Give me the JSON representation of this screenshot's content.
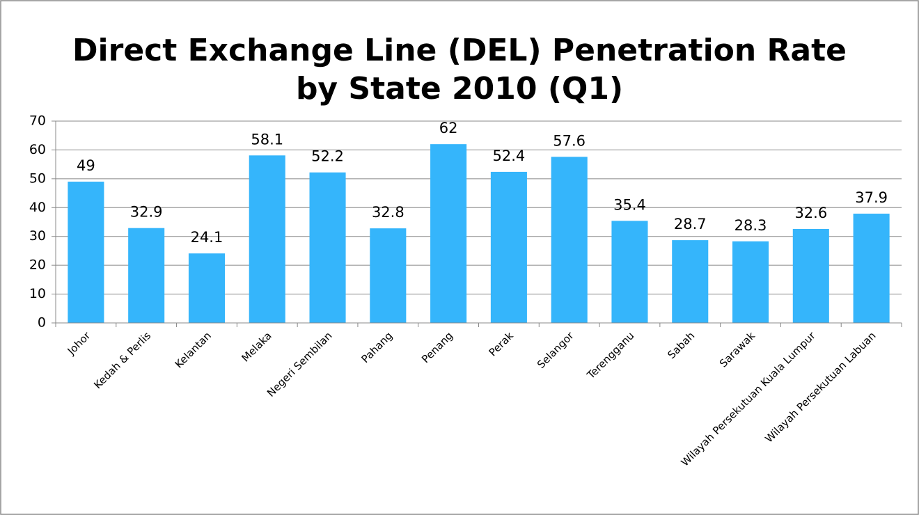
{
  "chart_data": {
    "type": "bar",
    "title": [
      "Direct Exchange Line (DEL) Penetration Rate",
      "by State 2010 (Q1)"
    ],
    "categories": [
      "Johor",
      "Kedah & Perlis",
      "Kelantan",
      "Melaka",
      "Negeri Sembilan",
      "Pahang",
      "Penang",
      "Perak",
      "Selangor",
      "Terengganu",
      "Sabah",
      "Sarawak",
      "Wilayah Persekutuan Kuala Lumpur",
      "Wilayah Persekutuan Labuan"
    ],
    "values": [
      49,
      32.9,
      24.1,
      58.1,
      52.2,
      32.8,
      62,
      52.4,
      57.6,
      35.4,
      28.7,
      28.3,
      32.6,
      37.9
    ],
    "color": "#35b5fb",
    "ylim": [
      0,
      70
    ],
    "yticks": [
      0,
      10,
      20,
      30,
      40,
      50,
      60,
      70
    ],
    "grid": true
  }
}
